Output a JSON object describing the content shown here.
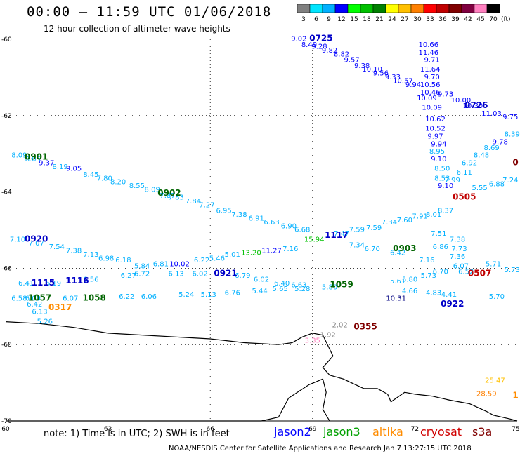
{
  "header": {
    "title": "00:00 – 11:59 UTC 01/06/2018",
    "subtitle": "12 hour collection of altimeter wave heights"
  },
  "colorbar": {
    "labels": [
      "3",
      "6",
      "9",
      "12",
      "15",
      "18",
      "21",
      "24",
      "27",
      "30",
      "33",
      "36",
      "39",
      "42",
      "45",
      "70"
    ],
    "unit": "(ft)",
    "colors": [
      "#808080",
      "#00e5ff",
      "#00b0ff",
      "#0000ff",
      "#00ff00",
      "#00c000",
      "#008000",
      "#ffff00",
      "#ffc000",
      "#ff8000",
      "#ff0000",
      "#c00000",
      "#800000",
      "#800040",
      "#ff80c0",
      "#000000"
    ]
  },
  "chart_data": {
    "type": "scatter",
    "xlim": [
      60,
      75
    ],
    "ylim": [
      -70,
      -60
    ],
    "xticks": [
      "60",
      "63",
      "66",
      "69",
      "72",
      "75"
    ],
    "yticks": [
      "-60",
      "-62",
      "-64",
      "-66",
      "-68",
      "-70"
    ],
    "coastline": [
      [
        60,
        -67.4
      ],
      [
        61,
        -67.45
      ],
      [
        62,
        -67.55
      ],
      [
        63,
        -67.7
      ],
      [
        64,
        -67.75
      ],
      [
        65,
        -67.8
      ],
      [
        66,
        -67.85
      ],
      [
        67,
        -67.95
      ],
      [
        68,
        -68.0
      ],
      [
        68.4,
        -67.95
      ],
      [
        68.7,
        -67.8
      ],
      [
        69,
        -67.7
      ],
      [
        69.3,
        -67.75
      ],
      [
        69.6,
        -68.3
      ],
      [
        69.3,
        -68.6
      ],
      [
        69.5,
        -68.8
      ],
      [
        69.9,
        -68.9
      ],
      [
        70.5,
        -69.15
      ],
      [
        70.9,
        -69.15
      ],
      [
        71.2,
        -69.3
      ],
      [
        71.3,
        -69.5
      ],
      [
        71.7,
        -69.25
      ],
      [
        72.0,
        -69.3
      ],
      [
        72.5,
        -69.35
      ],
      [
        73.0,
        -69.45
      ],
      [
        73.6,
        -69.55
      ],
      [
        74.1,
        -69.75
      ],
      [
        74.3,
        -69.85
      ],
      [
        74.8,
        -69.95
      ],
      [
        75,
        -70.0
      ]
    ],
    "coastline_south": [
      [
        60,
        -70.0
      ],
      [
        67.5,
        -70.0
      ],
      [
        68.0,
        -69.9
      ],
      [
        68.3,
        -69.4
      ],
      [
        68.9,
        -69.05
      ],
      [
        69.3,
        -68.9
      ],
      [
        69.4,
        -69.25
      ],
      [
        69.3,
        -69.7
      ],
      [
        69.5,
        -70.0
      ]
    ],
    "pass_labels": [
      {
        "label": "0725",
        "x": 69.25,
        "y": -60.05,
        "color": "#0000c8"
      },
      {
        "label": "0726",
        "x": 73.8,
        "y": -61.8,
        "color": "#0000c8"
      },
      {
        "label": "0901",
        "x": 60.9,
        "y": -63.15,
        "color": "#006400"
      },
      {
        "label": "0902",
        "x": 64.8,
        "y": -64.1,
        "color": "#006400"
      },
      {
        "label": "0903",
        "x": 71.7,
        "y": -65.55,
        "color": "#006400"
      },
      {
        "label": "0920",
        "x": 60.9,
        "y": -65.3,
        "color": "#0000c8"
      },
      {
        "label": "0921",
        "x": 66.45,
        "y": -66.2,
        "color": "#0000c8"
      },
      {
        "label": "0922",
        "x": 73.1,
        "y": -67.0,
        "color": "#0000c8"
      },
      {
        "label": "1115",
        "x": 61.1,
        "y": -66.45,
        "color": "#0000c8"
      },
      {
        "label": "1116",
        "x": 62.1,
        "y": -66.4,
        "color": "#0000c8"
      },
      {
        "label": "1117",
        "x": 69.7,
        "y": -65.2,
        "color": "#0000c8"
      },
      {
        "label": "1057",
        "x": 61.0,
        "y": -66.85,
        "color": "#006400"
      },
      {
        "label": "1058",
        "x": 62.6,
        "y": -66.85,
        "color": "#006400"
      },
      {
        "label": "1059",
        "x": 69.85,
        "y": -66.5,
        "color": "#006400"
      },
      {
        "label": "0317",
        "x": 61.6,
        "y": -67.1,
        "color": "#ff8c00"
      },
      {
        "label": "0505",
        "x": 73.45,
        "y": -64.2,
        "color": "#c00000"
      },
      {
        "label": "0507",
        "x": 73.9,
        "y": -66.2,
        "color": "#c00000"
      },
      {
        "label": "0355",
        "x": 70.55,
        "y": -67.6,
        "color": "#800000"
      },
      {
        "label": "0",
        "x": 74.95,
        "y": -63.3,
        "color": "#800000"
      },
      {
        "label": "1",
        "x": 74.95,
        "y": -69.4,
        "color": "#ff8c00"
      }
    ],
    "points": [
      {
        "v": "9.02",
        "x": 68.6,
        "y": -60.05,
        "c": "#0000ff"
      },
      {
        "v": "8.49",
        "x": 68.9,
        "y": -60.2,
        "c": "#0000ff"
      },
      {
        "v": "9.28",
        "x": 69.2,
        "y": -60.25,
        "c": "#0000ff"
      },
      {
        "v": "9.82",
        "x": 69.5,
        "y": -60.35,
        "c": "#0000ff"
      },
      {
        "v": "8.82",
        "x": 69.85,
        "y": -60.45,
        "c": "#0000ff"
      },
      {
        "v": "9.57",
        "x": 70.15,
        "y": -60.6,
        "c": "#0000ff"
      },
      {
        "v": "9.38",
        "x": 70.45,
        "y": -60.75,
        "c": "#0000ff"
      },
      {
        "v": "10.10",
        "x": 70.75,
        "y": -60.85,
        "c": "#0000ff"
      },
      {
        "v": "9.56",
        "x": 71.0,
        "y": -60.95,
        "c": "#0000ff"
      },
      {
        "v": "9.33",
        "x": 71.35,
        "y": -61.05,
        "c": "#0000ff"
      },
      {
        "v": "10.57",
        "x": 71.65,
        "y": -61.15,
        "c": "#0000ff"
      },
      {
        "v": "9.94",
        "x": 71.95,
        "y": -61.25,
        "c": "#0000ff"
      },
      {
        "v": "10.66",
        "x": 72.4,
        "y": -60.2,
        "c": "#0000ff"
      },
      {
        "v": "11.46",
        "x": 72.4,
        "y": -60.4,
        "c": "#0000ff"
      },
      {
        "v": "9.71",
        "x": 72.5,
        "y": -60.6,
        "c": "#0000ff"
      },
      {
        "v": "11.64",
        "x": 72.45,
        "y": -60.85,
        "c": "#0000ff"
      },
      {
        "v": "9.70",
        "x": 72.5,
        "y": -61.05,
        "c": "#0000ff"
      },
      {
        "v": "10.56",
        "x": 72.45,
        "y": -61.25,
        "c": "#0000ff"
      },
      {
        "v": "10.46",
        "x": 72.45,
        "y": -61.45,
        "c": "#0000ff"
      },
      {
        "v": "10.09",
        "x": 72.35,
        "y": -61.6,
        "c": "#0000ff"
      },
      {
        "v": "10.09",
        "x": 72.5,
        "y": -61.85,
        "c": "#0000ff"
      },
      {
        "v": "9.73",
        "x": 72.9,
        "y": -61.5,
        "c": "#0000ff"
      },
      {
        "v": "10.00",
        "x": 73.35,
        "y": -61.65,
        "c": "#0000ff"
      },
      {
        "v": "10.30",
        "x": 73.7,
        "y": -61.8,
        "c": "#0000ff"
      },
      {
        "v": "11.03",
        "x": 74.25,
        "y": -62.0,
        "c": "#0000ff"
      },
      {
        "v": "9.75",
        "x": 74.8,
        "y": -62.1,
        "c": "#0000ff"
      },
      {
        "v": "10.62",
        "x": 72.6,
        "y": -62.15,
        "c": "#0000ff"
      },
      {
        "v": "10.52",
        "x": 72.6,
        "y": -62.4,
        "c": "#0000ff"
      },
      {
        "v": "9.97",
        "x": 72.6,
        "y": -62.6,
        "c": "#0000ff"
      },
      {
        "v": "9.94",
        "x": 72.7,
        "y": -62.8,
        "c": "#0000ff"
      },
      {
        "v": "8.95",
        "x": 72.65,
        "y": -63.0,
        "c": "#00b0ff"
      },
      {
        "v": "9.10",
        "x": 72.7,
        "y": -63.2,
        "c": "#0000ff"
      },
      {
        "v": "8.50",
        "x": 72.8,
        "y": -63.45,
        "c": "#00b0ff"
      },
      {
        "v": "8.53",
        "x": 72.8,
        "y": -63.7,
        "c": "#00b0ff"
      },
      {
        "v": "9.10",
        "x": 72.9,
        "y": -63.9,
        "c": "#0000ff"
      },
      {
        "v": "9.78",
        "x": 74.5,
        "y": -62.75,
        "c": "#0000ff"
      },
      {
        "v": "8.39",
        "x": 74.85,
        "y": -62.55,
        "c": "#00b0ff"
      },
      {
        "v": "8.69",
        "x": 74.25,
        "y": -62.9,
        "c": "#00b0ff"
      },
      {
        "v": "8.48",
        "x": 73.95,
        "y": -63.1,
        "c": "#00b0ff"
      },
      {
        "v": "6.92",
        "x": 73.6,
        "y": -63.3,
        "c": "#00b0ff"
      },
      {
        "v": "6.11",
        "x": 73.45,
        "y": -63.55,
        "c": "#00b0ff"
      },
      {
        "v": "7.99",
        "x": 73.1,
        "y": -63.75,
        "c": "#00b0ff"
      },
      {
        "v": "7.24",
        "x": 74.8,
        "y": -63.75,
        "c": "#00b0ff"
      },
      {
        "v": "6.88",
        "x": 74.4,
        "y": -63.85,
        "c": "#00b0ff"
      },
      {
        "v": "5.55",
        "x": 73.9,
        "y": -63.95,
        "c": "#00b0ff"
      },
      {
        "v": "8.09",
        "x": 60.4,
        "y": -63.1,
        "c": "#00b0ff"
      },
      {
        "v": "8.05",
        "x": 60.8,
        "y": -63.2,
        "c": "#00b0ff"
      },
      {
        "v": "9.37",
        "x": 61.2,
        "y": -63.3,
        "c": "#0000ff"
      },
      {
        "v": "8.19",
        "x": 61.6,
        "y": -63.4,
        "c": "#00b0ff"
      },
      {
        "v": "9.05",
        "x": 62.0,
        "y": -63.45,
        "c": "#0000ff"
      },
      {
        "v": "8.45",
        "x": 62.5,
        "y": -63.6,
        "c": "#00b0ff"
      },
      {
        "v": "7.80",
        "x": 62.9,
        "y": -63.7,
        "c": "#00b0ff"
      },
      {
        "v": "8.20",
        "x": 63.3,
        "y": -63.8,
        "c": "#00b0ff"
      },
      {
        "v": "8.55",
        "x": 63.85,
        "y": -63.9,
        "c": "#00b0ff"
      },
      {
        "v": "8.09",
        "x": 64.3,
        "y": -64.0,
        "c": "#00b0ff"
      },
      {
        "v": "7.87",
        "x": 64.75,
        "y": -64.15,
        "c": "#00b0ff"
      },
      {
        "v": "7.83",
        "x": 65.0,
        "y": -64.2,
        "c": "#00b0ff"
      },
      {
        "v": "7.84",
        "x": 65.5,
        "y": -64.3,
        "c": "#00b0ff"
      },
      {
        "v": "7.27",
        "x": 65.9,
        "y": -64.4,
        "c": "#00b0ff"
      },
      {
        "v": "6.95",
        "x": 66.4,
        "y": -64.55,
        "c": "#00b0ff"
      },
      {
        "v": "7.38",
        "x": 66.85,
        "y": -64.65,
        "c": "#00b0ff"
      },
      {
        "v": "6.91",
        "x": 67.35,
        "y": -64.75,
        "c": "#00b0ff"
      },
      {
        "v": "6.63",
        "x": 67.8,
        "y": -64.85,
        "c": "#00b0ff"
      },
      {
        "v": "6.90",
        "x": 68.3,
        "y": -64.95,
        "c": "#00b0ff"
      },
      {
        "v": "6.68",
        "x": 68.7,
        "y": -65.05,
        "c": "#00b0ff"
      },
      {
        "v": "7.10",
        "x": 60.35,
        "y": -65.3,
        "c": "#00b0ff"
      },
      {
        "v": "7.07",
        "x": 60.9,
        "y": -65.4,
        "c": "#00b0ff"
      },
      {
        "v": "7.54",
        "x": 61.5,
        "y": -65.5,
        "c": "#00b0ff"
      },
      {
        "v": "7.38",
        "x": 62.0,
        "y": -65.6,
        "c": "#00b0ff"
      },
      {
        "v": "7.13",
        "x": 62.5,
        "y": -65.7,
        "c": "#00b0ff"
      },
      {
        "v": "6.98",
        "x": 62.95,
        "y": -65.8,
        "c": "#00b0ff"
      },
      {
        "v": "6.18",
        "x": 63.45,
        "y": -65.85,
        "c": "#00b0ff"
      },
      {
        "v": "5.84",
        "x": 64.0,
        "y": -66.0,
        "c": "#00b0ff"
      },
      {
        "v": "6.81",
        "x": 64.55,
        "y": -65.95,
        "c": "#00b0ff"
      },
      {
        "v": "10.02",
        "x": 65.1,
        "y": -65.95,
        "c": "#0000ff"
      },
      {
        "v": "6.22",
        "x": 65.75,
        "y": -65.85,
        "c": "#00b0ff"
      },
      {
        "v": "5.46",
        "x": 66.2,
        "y": -65.8,
        "c": "#00b0ff"
      },
      {
        "v": "5.01",
        "x": 66.65,
        "y": -65.7,
        "c": "#00b0ff"
      },
      {
        "v": "13.20",
        "x": 67.2,
        "y": -65.65,
        "c": "#00c000"
      },
      {
        "v": "11.27",
        "x": 67.8,
        "y": -65.6,
        "c": "#0000ff"
      },
      {
        "v": "7.16",
        "x": 68.35,
        "y": -65.55,
        "c": "#00b0ff"
      },
      {
        "v": "15.94",
        "x": 69.05,
        "y": -65.3,
        "c": "#00c000"
      },
      {
        "v": "7.47",
        "x": 69.85,
        "y": -65.15,
        "c": "#00b0ff"
      },
      {
        "v": "7.59",
        "x": 70.3,
        "y": -65.05,
        "c": "#00b0ff"
      },
      {
        "v": "7.59",
        "x": 70.8,
        "y": -65.0,
        "c": "#00b0ff"
      },
      {
        "v": "7.34",
        "x": 71.25,
        "y": -64.85,
        "c": "#00b0ff"
      },
      {
        "v": "7.60",
        "x": 71.7,
        "y": -64.8,
        "c": "#00b0ff"
      },
      {
        "v": "7.91",
        "x": 72.15,
        "y": -64.7,
        "c": "#00b0ff"
      },
      {
        "v": "8.01",
        "x": 72.55,
        "y": -64.65,
        "c": "#00b0ff"
      },
      {
        "v": "8.37",
        "x": 72.9,
        "y": -64.55,
        "c": "#00b0ff"
      },
      {
        "v": "7.34",
        "x": 70.3,
        "y": -65.45,
        "c": "#00b0ff"
      },
      {
        "v": "6.70",
        "x": 70.75,
        "y": -65.55,
        "c": "#00b0ff"
      },
      {
        "v": "6.42",
        "x": 71.5,
        "y": -65.65,
        "c": "#00b0ff"
      },
      {
        "v": "6.86",
        "x": 72.75,
        "y": -65.5,
        "c": "#00b0ff"
      },
      {
        "v": "7.51",
        "x": 72.7,
        "y": -65.15,
        "c": "#00b0ff"
      },
      {
        "v": "7.38",
        "x": 73.25,
        "y": -65.3,
        "c": "#00b0ff"
      },
      {
        "v": "7.73",
        "x": 73.3,
        "y": -65.55,
        "c": "#00b0ff"
      },
      {
        "v": "7.36",
        "x": 73.25,
        "y": -65.75,
        "c": "#00b0ff"
      },
      {
        "v": "7.16",
        "x": 72.35,
        "y": -65.85,
        "c": "#00b0ff"
      },
      {
        "v": "6.52",
        "x": 73.5,
        "y": -66.15,
        "c": "#00b0ff"
      },
      {
        "v": "6.41",
        "x": 60.6,
        "y": -66.45,
        "c": "#00b0ff"
      },
      {
        "v": "6.56",
        "x": 62.5,
        "y": -66.35,
        "c": "#00b0ff"
      },
      {
        "v": "6.27",
        "x": 63.6,
        "y": -66.25,
        "c": "#00b0ff"
      },
      {
        "v": "6.72",
        "x": 64.0,
        "y": -66.2,
        "c": "#00b0ff"
      },
      {
        "v": "6.13",
        "x": 65.0,
        "y": -66.2,
        "c": "#00b0ff"
      },
      {
        "v": "6.02",
        "x": 65.7,
        "y": -66.2,
        "c": "#00b0ff"
      },
      {
        "v": "6.79",
        "x": 66.95,
        "y": -66.25,
        "c": "#00b0ff"
      },
      {
        "v": "6.02",
        "x": 67.5,
        "y": -66.35,
        "c": "#00b0ff"
      },
      {
        "v": "6.40",
        "x": 68.1,
        "y": -66.45,
        "c": "#00b0ff"
      },
      {
        "v": "6.63",
        "x": 68.6,
        "y": -66.5,
        "c": "#00b0ff"
      },
      {
        "v": "6.19",
        "x": 61.4,
        "y": -66.45,
        "c": "#00b0ff"
      },
      {
        "v": "5.61",
        "x": 71.5,
        "y": -66.4,
        "c": "#00b0ff"
      },
      {
        "v": "5.80",
        "x": 71.85,
        "y": -66.35,
        "c": "#00b0ff"
      },
      {
        "v": "5.73",
        "x": 72.4,
        "y": -66.25,
        "c": "#00b0ff"
      },
      {
        "v": "6.70",
        "x": 72.75,
        "y": -66.15,
        "c": "#00b0ff"
      },
      {
        "v": "6.07",
        "x": 73.35,
        "y": -66.0,
        "c": "#00b0ff"
      },
      {
        "v": "5.71",
        "x": 74.3,
        "y": -65.95,
        "c": "#00b0ff"
      },
      {
        "v": "5.73",
        "x": 74.85,
        "y": -66.1,
        "c": "#00b0ff"
      },
      {
        "v": "6.58",
        "x": 60.4,
        "y": -66.85,
        "c": "#00b0ff"
      },
      {
        "v": "6.09",
        "x": 60.8,
        "y": -66.85,
        "c": "#00b0ff"
      },
      {
        "v": "6.07",
        "x": 61.9,
        "y": -66.85,
        "c": "#00b0ff"
      },
      {
        "v": "6.22",
        "x": 63.55,
        "y": -66.8,
        "c": "#00b0ff"
      },
      {
        "v": "6.06",
        "x": 64.2,
        "y": -66.8,
        "c": "#00b0ff"
      },
      {
        "v": "5.24",
        "x": 65.3,
        "y": -66.75,
        "c": "#00b0ff"
      },
      {
        "v": "5.13",
        "x": 65.95,
        "y": -66.75,
        "c": "#00b0ff"
      },
      {
        "v": "6.76",
        "x": 66.65,
        "y": -66.7,
        "c": "#00b0ff"
      },
      {
        "v": "5.44",
        "x": 67.45,
        "y": -66.65,
        "c": "#00b0ff"
      },
      {
        "v": "5.65",
        "x": 68.05,
        "y": -66.6,
        "c": "#00b0ff"
      },
      {
        "v": "5.28",
        "x": 68.7,
        "y": -66.6,
        "c": "#00b0ff"
      },
      {
        "v": "5.80",
        "x": 69.5,
        "y": -66.55,
        "c": "#00b0ff"
      },
      {
        "v": "4.66",
        "x": 71.85,
        "y": -66.65,
        "c": "#00b0ff"
      },
      {
        "v": "4.83",
        "x": 72.55,
        "y": -66.7,
        "c": "#00b0ff"
      },
      {
        "v": "4.41",
        "x": 73.0,
        "y": -66.75,
        "c": "#00b0ff"
      },
      {
        "v": "5.70",
        "x": 74.4,
        "y": -66.8,
        "c": "#00b0ff"
      },
      {
        "v": "10.31",
        "x": 71.45,
        "y": -66.85,
        "c": "#000080"
      },
      {
        "v": "6.42",
        "x": 60.85,
        "y": -67.0,
        "c": "#00b0ff"
      },
      {
        "v": "6.13",
        "x": 61.0,
        "y": -67.2,
        "c": "#00b0ff"
      },
      {
        "v": "5.26",
        "x": 61.15,
        "y": -67.45,
        "c": "#00b0ff"
      },
      {
        "v": "2.02",
        "x": 69.8,
        "y": -67.55,
        "c": "#808080"
      },
      {
        "v": "1.92",
        "x": 69.45,
        "y": -67.8,
        "c": "#808080"
      },
      {
        "v": "3.35",
        "x": 69.0,
        "y": -67.95,
        "c": "#ff80c0"
      },
      {
        "v": "25.47",
        "x": 74.35,
        "y": -69.0,
        "c": "#ffc000"
      },
      {
        "v": "28.59",
        "x": 74.1,
        "y": -69.35,
        "c": "#ff8000"
      }
    ]
  },
  "note": {
    "text": "note:  1) Time is in UTC;  2) SWH is in feet"
  },
  "satellites": [
    {
      "name": "jason2",
      "color": "#0000ff"
    },
    {
      "name": "jason3",
      "color": "#00a000"
    },
    {
      "name": "altika",
      "color": "#ff8c00"
    },
    {
      "name": "cryosat",
      "color": "#d00000"
    },
    {
      "name": "s3a",
      "color": "#800000"
    }
  ],
  "credit": "NOAA/NESDIS Center for Satellite Applications and Research    Jan  7 13:27:15 UTC 2018"
}
